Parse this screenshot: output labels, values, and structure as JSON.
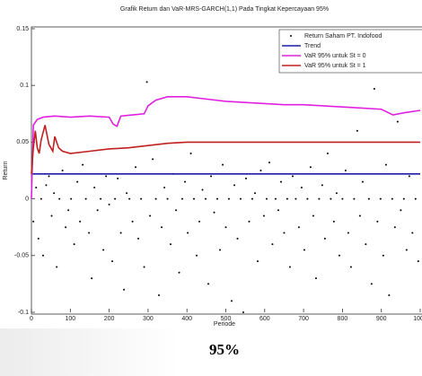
{
  "chart_data": {
    "type": "line",
    "title": "Grafik Return dan VaR-MRS-GARCH(1,1) Pada Tingkat Kepercayaan 95%",
    "xlabel": "Periode",
    "ylabel": "Return",
    "xlim": [
      0,
      1000
    ],
    "xticks": [
      0,
      100,
      200,
      300,
      400,
      500,
      600,
      700,
      800,
      900,
      1000
    ],
    "ylim": [
      -0.1,
      0.15
    ],
    "yticks": [
      -0.1,
      -0.05,
      0,
      0.05,
      0.1,
      0.15
    ],
    "legend": "top-right",
    "series": [
      {
        "name": "Return Saham PT. Indofood",
        "type": "scatter",
        "color": "#000000",
        "x": [
          5,
          12,
          18,
          25,
          30,
          38,
          45,
          52,
          58,
          65,
          72,
          80,
          88,
          95,
          102,
          110,
          118,
          125,
          132,
          140,
          148,
          155,
          162,
          170,
          178,
          185,
          192,
          200,
          208,
          215,
          222,
          230,
          238,
          245,
          252,
          260,
          268,
          275,
          282,
          290,
          297,
          305,
          312,
          320,
          328,
          335,
          342,
          350,
          358,
          365,
          372,
          380,
          388,
          395,
          402,
          410,
          418,
          425,
          432,
          440,
          448,
          455,
          462,
          470,
          478,
          485,
          492,
          500,
          508,
          515,
          522,
          530,
          538,
          545,
          552,
          560,
          568,
          575,
          582,
          590,
          598,
          605,
          612,
          620,
          628,
          635,
          642,
          650,
          658,
          665,
          672,
          680,
          688,
          695,
          702,
          710,
          718,
          725,
          732,
          740,
          748,
          755,
          762,
          770,
          778,
          785,
          792,
          800,
          808,
          815,
          822,
          830,
          838,
          845,
          852,
          860,
          868,
          875,
          882,
          890,
          898,
          905,
          912,
          920,
          928,
          935,
          942,
          950,
          958,
          965,
          972,
          980,
          988,
          995
        ],
        "values": [
          -0.02,
          0.01,
          -0.035,
          0.0,
          -0.05,
          0.012,
          0.02,
          -0.015,
          0.005,
          -0.06,
          0.0,
          0.025,
          -0.025,
          -0.01,
          0.0,
          -0.04,
          0.015,
          -0.02,
          0.03,
          0.0,
          -0.03,
          -0.07,
          0.01,
          -0.01,
          0.0,
          -0.045,
          0.02,
          -0.005,
          -0.055,
          0.0,
          0.018,
          -0.03,
          -0.08,
          0.005,
          0.0,
          -0.02,
          0.028,
          -0.035,
          0.0,
          -0.06,
          0.103,
          -0.015,
          0.035,
          0.0,
          -0.085,
          -0.025,
          0.01,
          0.0,
          -0.04,
          0.022,
          -0.01,
          -0.065,
          0.0,
          0.015,
          -0.03,
          0.04,
          0.0,
          -0.05,
          -0.02,
          0.008,
          0.0,
          -0.075,
          0.02,
          -0.012,
          0.0,
          -0.045,
          0.03,
          -0.025,
          0.0,
          -0.09,
          0.012,
          -0.035,
          0.0,
          -0.1,
          0.018,
          -0.02,
          0.0,
          0.005,
          -0.055,
          0.025,
          -0.015,
          0.0,
          0.032,
          -0.04,
          0.0,
          -0.01,
          0.015,
          -0.03,
          0.0,
          -0.06,
          0.02,
          0.0,
          -0.025,
          0.01,
          -0.045,
          0.0,
          0.028,
          -0.015,
          -0.07,
          0.0,
          0.012,
          -0.035,
          0.04,
          0.0,
          -0.02,
          0.005,
          -0.05,
          0.0,
          0.025,
          -0.03,
          -0.06,
          0.0,
          0.06,
          -0.015,
          0.015,
          -0.04,
          0.0,
          -0.075,
          0.097,
          -0.02,
          0.0,
          -0.05,
          0.03,
          -0.085,
          0.0,
          -0.025,
          0.068,
          -0.01,
          0.0,
          -0.045,
          0.02,
          -0.03,
          0.0,
          -0.055
        ]
      },
      {
        "name": "Trend",
        "type": "line",
        "color": "#1c1ca8",
        "x": [
          0,
          1000
        ],
        "values": [
          0.022,
          0.022
        ]
      },
      {
        "name": "VaR 95% untuk St = 0",
        "type": "line",
        "color": "#e020e0",
        "x": [
          0,
          5,
          15,
          30,
          60,
          100,
          150,
          200,
          210,
          220,
          230,
          260,
          290,
          300,
          320,
          350,
          400,
          450,
          500,
          550,
          600,
          650,
          700,
          750,
          800,
          850,
          900,
          930,
          960,
          1000
        ],
        "values": [
          0.0,
          0.065,
          0.07,
          0.072,
          0.073,
          0.072,
          0.073,
          0.072,
          0.066,
          0.064,
          0.073,
          0.074,
          0.075,
          0.082,
          0.087,
          0.09,
          0.09,
          0.088,
          0.086,
          0.085,
          0.084,
          0.083,
          0.083,
          0.082,
          0.081,
          0.08,
          0.079,
          0.074,
          0.076,
          0.078
        ]
      },
      {
        "name": "VaR 95% untuk St = 1",
        "type": "line",
        "color": "#c02020",
        "x": [
          0,
          5,
          10,
          15,
          20,
          25,
          35,
          45,
          55,
          60,
          70,
          80,
          100,
          150,
          200,
          250,
          300,
          350,
          400,
          450,
          500,
          600,
          700,
          800,
          900,
          1000
        ],
        "values": [
          0.022,
          0.045,
          0.06,
          0.045,
          0.04,
          0.052,
          0.065,
          0.048,
          0.042,
          0.055,
          0.045,
          0.042,
          0.04,
          0.042,
          0.044,
          0.045,
          0.047,
          0.049,
          0.05,
          0.05,
          0.05,
          0.05,
          0.05,
          0.05,
          0.05,
          0.05
        ]
      }
    ]
  },
  "caption": "95%"
}
